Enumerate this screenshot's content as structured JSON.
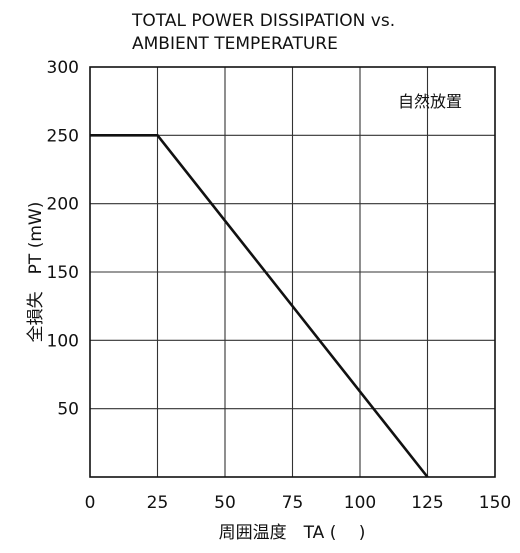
{
  "chart_data": {
    "type": "line",
    "title_lines": [
      "TOTAL POWER DISSIPATION vs.",
      "AMBIENT TEMPERATURE"
    ],
    "xlabel": "周囲温度　TA (　 )",
    "ylabel": "全損失　PT (mW)",
    "annotation": "自然放置",
    "x_ticks": [
      0,
      25,
      50,
      75,
      100,
      125,
      150
    ],
    "y_ticks": [
      50,
      100,
      150,
      200,
      250,
      300
    ],
    "xlim": [
      0,
      150
    ],
    "ylim": [
      0,
      300
    ],
    "grid": true,
    "series": [
      {
        "x": [
          0,
          25,
          125
        ],
        "y": [
          250,
          250,
          0
        ]
      }
    ]
  },
  "colors": {
    "line": "#111111",
    "grid": "#333333",
    "frame": "#111111"
  }
}
